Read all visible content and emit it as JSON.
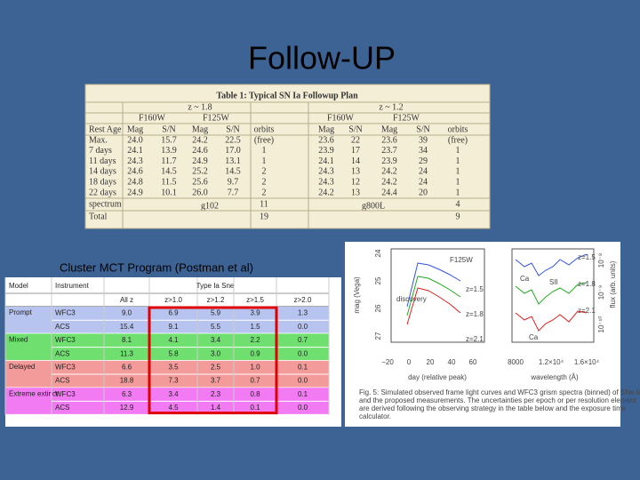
{
  "title": "Follow-UP",
  "table1": {
    "title": "Table 1: Typical SN Ia Followup Plan",
    "redshift_headers": [
      "z ~ 1.8",
      "z ~ 1.2"
    ],
    "filter_headers": [
      "F160W",
      "F125W",
      "F160W",
      "F125W"
    ],
    "columns": [
      "Rest Age",
      "Mag",
      "S/N",
      "Mag",
      "S/N",
      "orbits",
      "Mag",
      "S/N",
      "Mag",
      "S/N",
      "orbits"
    ],
    "rows": [
      [
        "Max.",
        "24.0",
        "15.7",
        "24.2",
        "22.5",
        "(free)",
        "23.6",
        "22",
        "23.6",
        "39",
        "(free)"
      ],
      [
        "7 days",
        "24.1",
        "13.9",
        "24.6",
        "17.0",
        "1",
        "23.9",
        "17",
        "23.7",
        "34",
        "1"
      ],
      [
        "11 days",
        "24.3",
        "11.7",
        "24.9",
        "13.1",
        "1",
        "24.1",
        "14",
        "23.9",
        "29",
        "1"
      ],
      [
        "14 days",
        "24.6",
        "14.5",
        "25.2",
        "14.5",
        "2",
        "24.3",
        "13",
        "24.2",
        "24",
        "1"
      ],
      [
        "18 days",
        "24.8",
        "11.5",
        "25.6",
        "9.7",
        "2",
        "24.3",
        "12",
        "24.2",
        "24",
        "1"
      ],
      [
        "22 days",
        "24.9",
        "10.1",
        "26.0",
        "7.7",
        "2",
        "24.2",
        "13",
        "24.4",
        "20",
        "1"
      ]
    ],
    "spectrum": {
      "label": "spectrum",
      "grism": [
        "g102",
        "g800L"
      ],
      "orbits": [
        "11",
        "4"
      ]
    },
    "total": {
      "label": "Total",
      "orbits": [
        "19",
        "9"
      ]
    }
  },
  "caption": "Cluster MCT Program (Postman et al)",
  "table2": {
    "columns": [
      "Model",
      "Instrument"
    ],
    "group_header": "Type Ia Sne",
    "subcolumns": [
      "All z",
      "z>1.0",
      "z>1.2",
      "z>1.5",
      "z>2.0"
    ],
    "models": [
      {
        "name": "Prompt",
        "color": "#b8c4f0",
        "rows": [
          {
            "instrument": "WFC3",
            "values": [
              "9.0",
              "6.9",
              "5.9",
              "3.9",
              "1.3"
            ]
          },
          {
            "instrument": "ACS",
            "values": [
              "15.4",
              "9.1",
              "5.5",
              "1.5",
              "0.0"
            ]
          }
        ]
      },
      {
        "name": "Mixed",
        "color": "#6fe06f",
        "rows": [
          {
            "instrument": "WFC3",
            "values": [
              "8.1",
              "4.1",
              "3.4",
              "2.2",
              "0.7"
            ]
          },
          {
            "instrument": "ACS",
            "values": [
              "11.3",
              "5.8",
              "3.0",
              "0.9",
              "0.0"
            ]
          }
        ]
      },
      {
        "name": "Delayed",
        "color": "#f39a9a",
        "rows": [
          {
            "instrument": "WFC3",
            "values": [
              "6.6",
              "3.5",
              "2.5",
              "1.0",
              "0.1"
            ]
          },
          {
            "instrument": "ACS",
            "values": [
              "18.8",
              "7.3",
              "3.7",
              "0.7",
              "0.0"
            ]
          }
        ]
      },
      {
        "name": "Extreme extinct",
        "color": "#f27af2",
        "rows": [
          {
            "instrument": "WFC3",
            "values": [
              "6.3",
              "3.4",
              "2.3",
              "0.8",
              "0.1"
            ]
          },
          {
            "instrument": "ACS",
            "values": [
              "12.9",
              "4.5",
              "1.4",
              "0.1",
              "0.0"
            ]
          }
        ]
      }
    ]
  },
  "figure": {
    "left_plot": {
      "ylabel": "mag (Vega)",
      "xlabel": "day (relative peak)",
      "yticks": [
        "24",
        "25",
        "26",
        "27"
      ],
      "xticks": [
        "−20",
        "0",
        "20",
        "40",
        "60"
      ],
      "filter": "F125W",
      "annotation": "discovery",
      "redshifts": [
        "z=1.5",
        "z=1.8",
        "z=2.1"
      ]
    },
    "right_plot": {
      "ylabel": "flux (arb. units)",
      "xlabel": "wavelength (Å)",
      "xticks": [
        "8000",
        "1.2×10⁴",
        "1.6×10⁴"
      ],
      "yticks": [
        "10⁻¹⁰",
        "10⁻⁹",
        "10⁻⁸"
      ],
      "lines": [
        "Ca",
        "SII",
        "Ca"
      ],
      "redshifts": [
        "z=1.5",
        "z=1.8",
        "z=2.1"
      ]
    },
    "caption_lines": [
      "Fig. 5: Simulated observed frame light curves and WFC3 grism spectra (binned) of SNe Ia",
      "and the proposed measurements. The uncertainties per epoch or per resolution element",
      "are derived following the observing strategy in the table below and the exposure time",
      "calculator."
    ]
  }
}
